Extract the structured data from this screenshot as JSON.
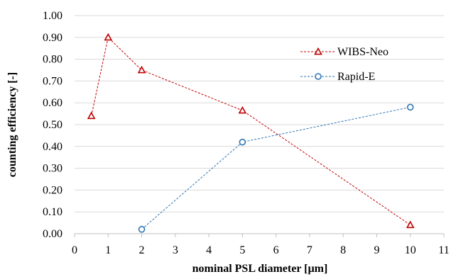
{
  "chart_data": {
    "type": "line",
    "title": "",
    "xlabel": "nominal PSL diameter [µm]",
    "ylabel": "counting efficiency  [-]",
    "xlim": [
      0,
      11
    ],
    "ylim": [
      0,
      1.0
    ],
    "x_ticks": [
      "0",
      "1",
      "2",
      "3",
      "4",
      "5",
      "6",
      "7",
      "8",
      "9",
      "10",
      "11"
    ],
    "y_ticks": [
      "0.00",
      "0.10",
      "0.20",
      "0.30",
      "0.40",
      "0.50",
      "0.60",
      "0.70",
      "0.80",
      "0.90",
      "1.00"
    ],
    "grid": "horizontal",
    "legend_position": "top-right",
    "series": [
      {
        "name": "WIBS-Neo",
        "marker": "triangle",
        "color": "#c00000",
        "line_style": "dotted",
        "x": [
          0.5,
          1,
          2,
          5,
          10
        ],
        "values": [
          0.54,
          0.9,
          0.75,
          0.565,
          0.04
        ]
      },
      {
        "name": "Rapid-E",
        "marker": "circle",
        "color": "#2e75b6",
        "line_style": "dotted",
        "x": [
          2,
          5,
          10
        ],
        "values": [
          0.02,
          0.42,
          0.58
        ]
      }
    ]
  }
}
